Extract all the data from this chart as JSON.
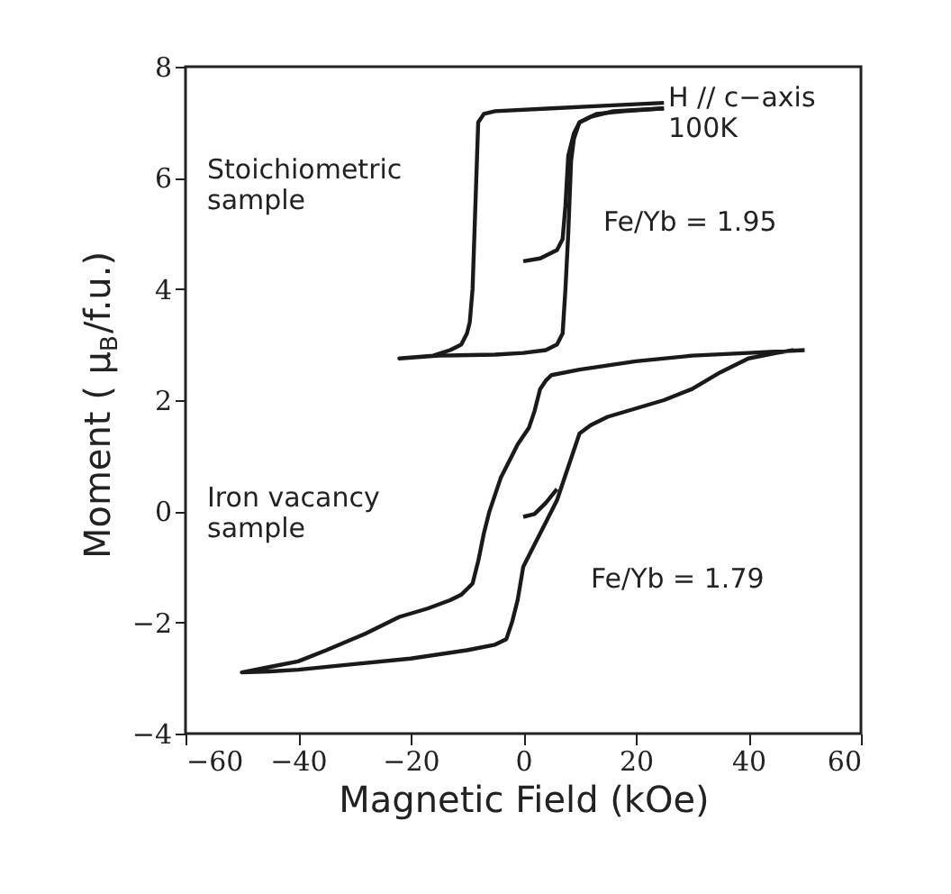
{
  "chart_data": {
    "type": "line",
    "xlabel": "Magnetic Field (kOe)",
    "ylabel": "Moment ( μ$_{B}$/f.u.)",
    "xlim": [
      -60,
      60
    ],
    "xticks": [
      -60,
      -40,
      -20,
      0,
      20,
      40,
      60
    ],
    "ylim": [
      -4,
      8
    ],
    "yticks": [
      -4,
      -2,
      0,
      2,
      4,
      6,
      8
    ],
    "grid": false,
    "marker": "none",
    "line_style": "solid",
    "series": [
      {
        "color": "#1a1a1a",
        "x": [
          0,
          3,
          6,
          7,
          7.5,
          8,
          9,
          10,
          13,
          18,
          25
        ],
        "values": [
          4.5,
          4.55,
          4.7,
          4.9,
          5.5,
          6.4,
          6.8,
          7.0,
          7.15,
          7.2,
          7.25
        ]
      },
      {
        "color": "#1a1a1a",
        "x": [
          25,
          15,
          5,
          -5,
          -7,
          -8,
          -8.5,
          -9,
          -9.5,
          -10,
          -11,
          -13,
          -16,
          -22,
          -15,
          -5,
          0,
          4,
          6,
          7,
          7.5,
          8,
          8.5,
          9,
          10,
          12,
          16,
          25
        ],
        "values": [
          7.35,
          7.3,
          7.25,
          7.2,
          7.15,
          7.0,
          5.5,
          4.0,
          3.4,
          3.2,
          3.0,
          2.9,
          2.8,
          2.75,
          2.8,
          2.82,
          2.85,
          2.9,
          3.0,
          3.2,
          4.0,
          5.0,
          6.3,
          6.7,
          7.0,
          7.1,
          7.2,
          7.25
        ]
      },
      {
        "color": "#1a1a1a",
        "x": [
          0,
          2,
          4,
          6
        ],
        "values": [
          -0.1,
          -0.05,
          0.15,
          0.4
        ]
      },
      {
        "color": "#1a1a1a",
        "x": [
          50,
          40,
          30,
          20,
          10,
          5,
          4,
          3,
          2,
          1,
          -1,
          -2,
          -4,
          -5,
          -6,
          -7,
          -8,
          -9,
          -11,
          -13,
          -17,
          -22,
          -28,
          -35,
          -40,
          -45,
          -50,
          -45,
          -40,
          -30,
          -20,
          -10,
          -5,
          -3,
          -2,
          -1,
          0,
          2,
          4,
          6,
          8,
          10,
          12,
          15,
          20,
          25,
          30,
          35,
          40,
          45,
          48
        ],
        "values": [
          2.9,
          2.85,
          2.8,
          2.7,
          2.55,
          2.45,
          2.35,
          2.2,
          1.8,
          1.5,
          1.2,
          1.0,
          0.6,
          0.3,
          0.0,
          -0.4,
          -0.9,
          -1.3,
          -1.5,
          -1.6,
          -1.75,
          -1.9,
          -2.2,
          -2.5,
          -2.7,
          -2.8,
          -2.9,
          -2.88,
          -2.85,
          -2.75,
          -2.65,
          -2.5,
          -2.4,
          -2.3,
          -2.0,
          -1.6,
          -1.0,
          -0.6,
          -0.2,
          0.2,
          0.8,
          1.4,
          1.55,
          1.7,
          1.85,
          2.0,
          2.2,
          2.5,
          2.75,
          2.85,
          2.9
        ]
      }
    ],
    "annotations": [
      "H // c−axis\n  100K",
      "Stoichiometric\nsample",
      "Fe/Yb = 1.95",
      "Iron vacancy\nsample",
      "Fe/Yb = 1.79"
    ]
  }
}
